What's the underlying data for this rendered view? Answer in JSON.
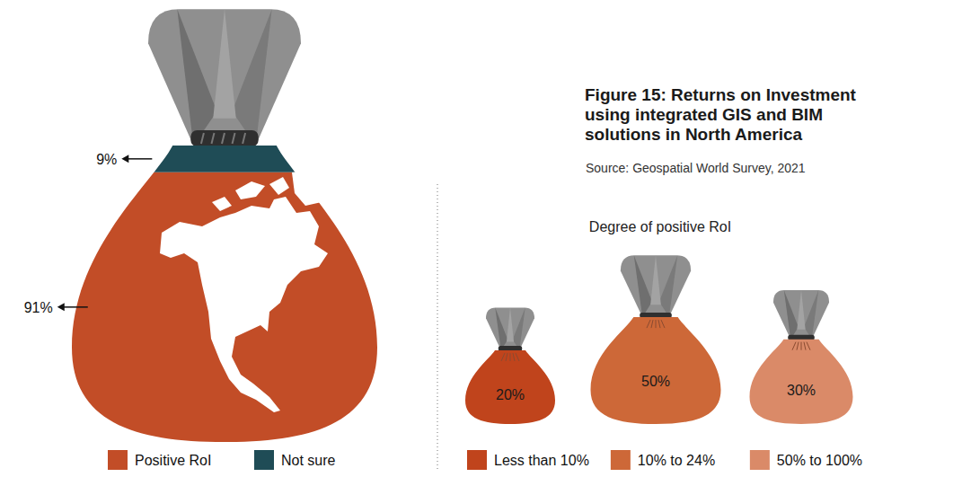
{
  "chart_data": [
    {
      "type": "pie",
      "title": "Figure 15: Returns on Investment using integrated GIS and BIM solutions in North America",
      "subtitle": "Source: Geospatial World Survey, 2021",
      "categories": [
        "Positive RoI",
        "Not sure"
      ],
      "values": [
        91,
        9
      ],
      "value_labels": [
        "91%",
        "9%"
      ],
      "colors": [
        "#c24d27",
        "#1f4c56"
      ],
      "data_labels": true,
      "legend": "bottom"
    },
    {
      "type": "bar",
      "title": "Degree of positive RoI",
      "categories": [
        "Less than 10%",
        "10% to 24%",
        "50% to 100%"
      ],
      "values": [
        20,
        50,
        30
      ],
      "value_labels": [
        "20%",
        "50%",
        "30%"
      ],
      "colors": [
        "#c0441c",
        "#cd6838",
        "#da8a68"
      ],
      "data_labels": true,
      "legend": "bottom",
      "tick_labels": false
    }
  ]
}
